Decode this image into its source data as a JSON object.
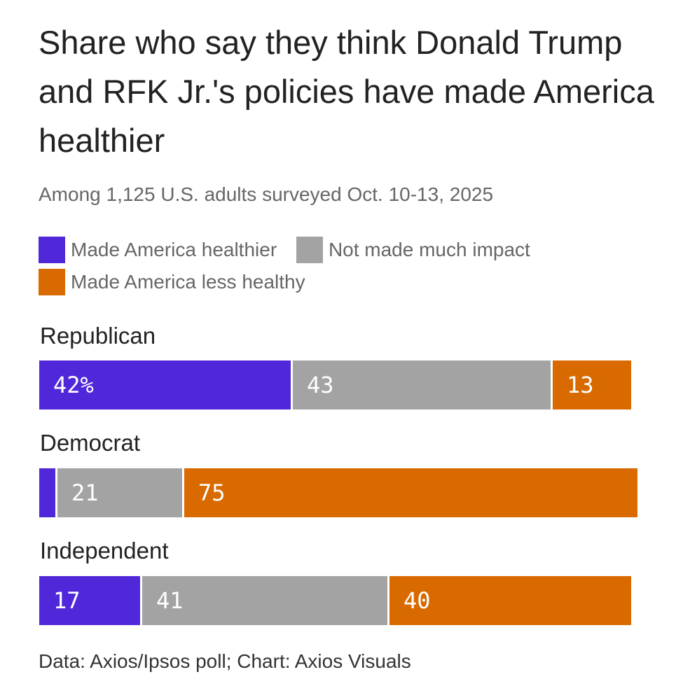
{
  "chart_data": {
    "type": "bar",
    "orientation": "horizontal",
    "stacked": true,
    "title": "Share who say they think Donald Trump and RFK Jr.'s policies have made America healthier",
    "subtitle": "Among 1,125 U.S. adults surveyed Oct. 10-13, 2025",
    "source": "Data: Axios/Ipsos poll; Chart: Axios Visuals",
    "legend": {
      "placement": "top",
      "items": [
        {
          "label": "Made America healthier",
          "color": "#5128d9"
        },
        {
          "label": "Not made much impact",
          "color": "#a3a3a3"
        },
        {
          "label": "Made America less healthy",
          "color": "#d86a00"
        }
      ]
    },
    "categories": [
      "Republican",
      "Democrat",
      "Independent"
    ],
    "series": [
      {
        "name": "Made America healthier",
        "color": "#5128d9",
        "values": [
          42,
          3,
          17
        ],
        "labels": [
          "42%",
          "",
          "17"
        ]
      },
      {
        "name": "Not made much impact",
        "color": "#a3a3a3",
        "values": [
          43,
          21,
          41
        ],
        "labels": [
          "43",
          "21",
          "41"
        ]
      },
      {
        "name": "Made America less healthy",
        "color": "#d86a00",
        "values": [
          13,
          75,
          40
        ],
        "labels": [
          "13",
          "75",
          "40"
        ]
      }
    ],
    "xlim": [
      0,
      100
    ]
  }
}
